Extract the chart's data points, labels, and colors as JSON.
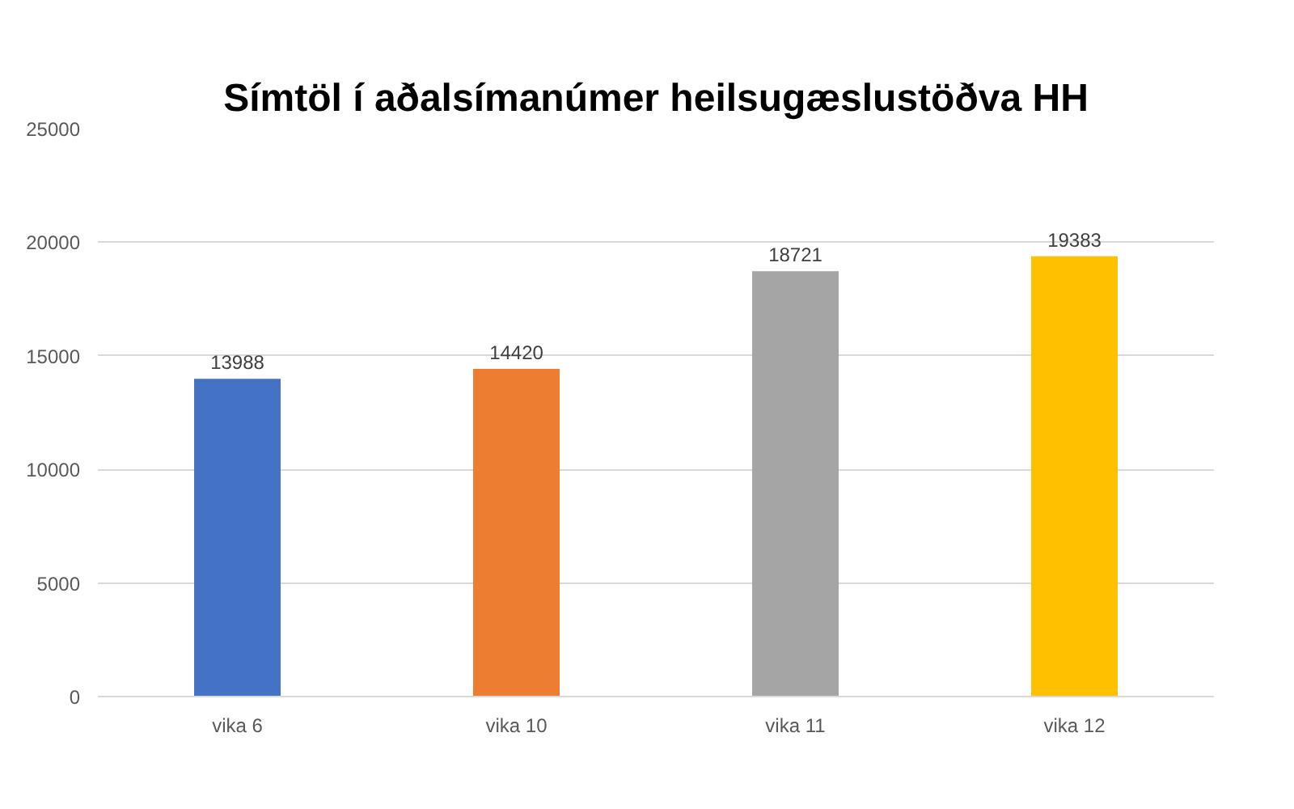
{
  "chart_data": {
    "type": "bar",
    "title": "Símtöl í aðalsímanúmer heilsugæslustöðva HH",
    "categories": [
      "vika 6",
      "vika 10",
      "vika 11",
      "vika 12"
    ],
    "values": [
      13988,
      14420,
      18721,
      19383
    ],
    "colors": [
      "#4472c4",
      "#ed7d31",
      "#a5a5a5",
      "#ffc000"
    ],
    "ylim": [
      0,
      25000
    ],
    "yticks": [
      0,
      5000,
      10000,
      15000,
      20000,
      25000
    ],
    "grid": "y",
    "data_labels": true
  }
}
